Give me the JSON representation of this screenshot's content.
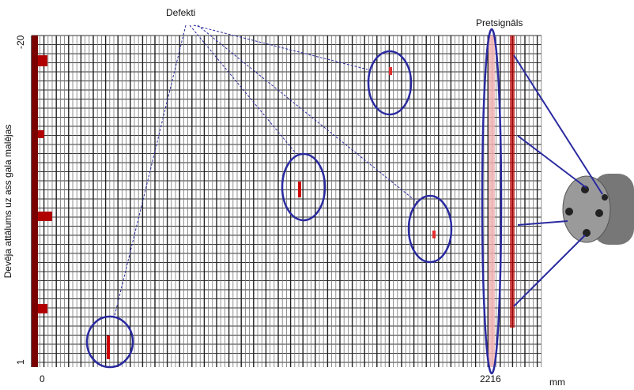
{
  "labels": {
    "defects": "Defekti",
    "presignal": "Pretsignāls",
    "y_axis": "Devēja attālums uz ass gala malējas",
    "x_start": "0",
    "x_end": "2216",
    "x_unit": "mm",
    "y_top": "-20",
    "y_bottom": "1"
  }
}
